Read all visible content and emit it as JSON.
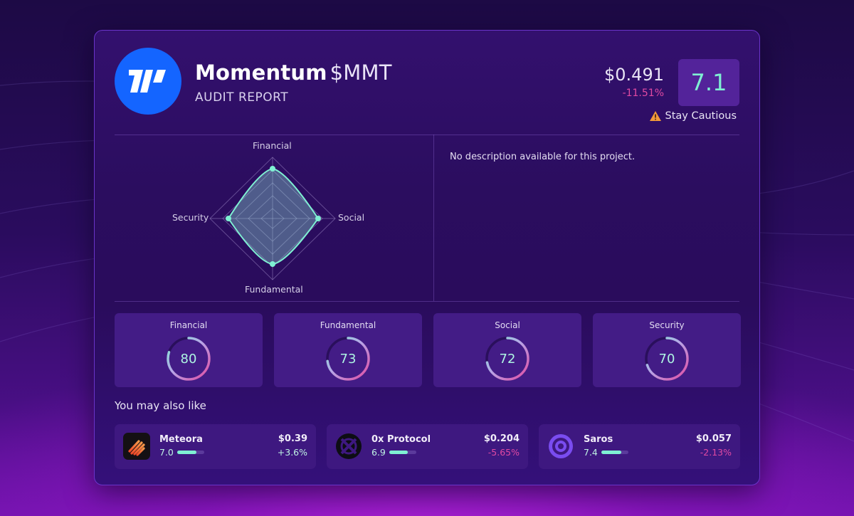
{
  "project": {
    "name": "Momentum",
    "ticker": "$MMT",
    "subtitle": "AUDIT REPORT",
    "price": "$0.491",
    "change": "-11.51%",
    "score": "7.1",
    "verdict": "Stay Cautious",
    "description": "No description available for this project."
  },
  "radar": {
    "labels": {
      "top": "Financial",
      "right": "Social",
      "bottom": "Fundamental",
      "left": "Security"
    }
  },
  "metrics": [
    {
      "label": "Financial",
      "value": "80",
      "fraction": 0.8
    },
    {
      "label": "Fundamental",
      "value": "73",
      "fraction": 0.73
    },
    {
      "label": "Social",
      "value": "72",
      "fraction": 0.72
    },
    {
      "label": "Security",
      "value": "70",
      "fraction": 0.7
    }
  ],
  "also_like": {
    "title": "You may also like",
    "items": [
      {
        "name": "Meteora",
        "score": "7.0",
        "score_fraction": 0.7,
        "price": "$0.39",
        "change": "+3.6%",
        "direction": "pos",
        "icon": "meteora-logo-icon"
      },
      {
        "name": "0x Protocol",
        "score": "6.9",
        "score_fraction": 0.69,
        "price": "$0.204",
        "change": "-5.65%",
        "direction": "neg",
        "icon": "0x-protocol-logo-icon"
      },
      {
        "name": "Saros",
        "score": "7.4",
        "score_fraction": 0.74,
        "price": "$0.057",
        "change": "-2.13%",
        "direction": "neg",
        "icon": "saros-logo-icon"
      }
    ]
  },
  "colors": {
    "accent_teal": "#7ff0d3",
    "negative_pink": "#e14aa2",
    "logo_blue": "#1465ff",
    "warning_orange": "#f29a3a"
  }
}
